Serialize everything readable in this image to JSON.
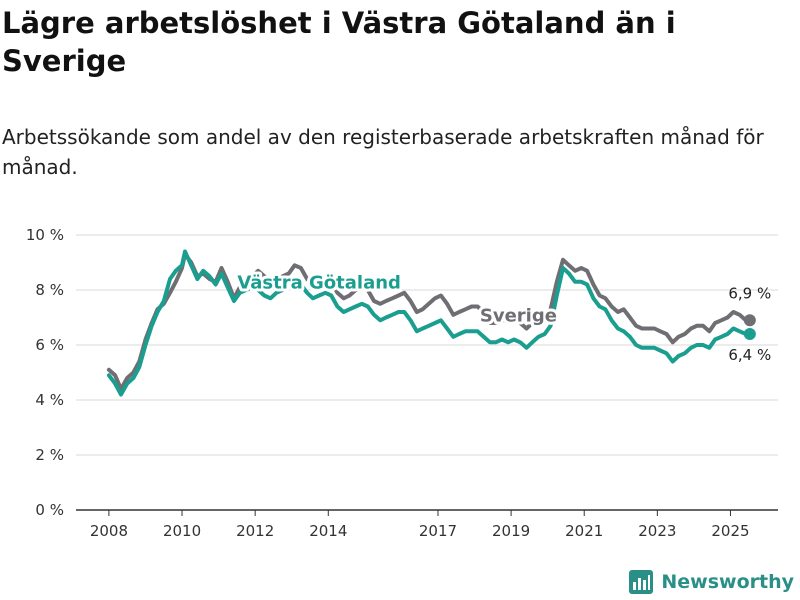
{
  "title": "Lägre arbetslöshet i Västra Götaland än i Sverige",
  "subtitle": "Arbetssökande som andel av den registerbaserade arbetskraften månad för månad.",
  "brand": {
    "name": "Newsworthy",
    "icon": "bar-chart-logo-icon",
    "color": "#2a8f86"
  },
  "chart_data": {
    "type": "line",
    "ylim": [
      0,
      10
    ],
    "xlim": [
      2007.1,
      2026.3
    ],
    "y_ticks": [
      0,
      2,
      4,
      6,
      8,
      10
    ],
    "y_tick_labels": [
      "0 %",
      "2 %",
      "4 %",
      "6 %",
      "8 %",
      "10 %"
    ],
    "x_ticks": [
      2008,
      2010,
      2012,
      2014,
      2017,
      2019,
      2021,
      2023,
      2025
    ],
    "x_tick_labels": [
      "2008",
      "2010",
      "2012",
      "2014",
      "2017",
      "2019",
      "2021",
      "2023",
      "2025"
    ],
    "grid": true,
    "legend": "direct labels on lines",
    "series": [
      {
        "name": "Sverige",
        "color": "#6e6e73",
        "end_label": "6,9 %",
        "points": [
          [
            2008.0,
            5.1
          ],
          [
            2008.17,
            4.9
          ],
          [
            2008.33,
            4.4
          ],
          [
            2008.5,
            4.8
          ],
          [
            2008.67,
            5.0
          ],
          [
            2008.83,
            5.4
          ],
          [
            2009.0,
            6.2
          ],
          [
            2009.17,
            6.8
          ],
          [
            2009.33,
            7.3
          ],
          [
            2009.5,
            7.5
          ],
          [
            2009.67,
            7.9
          ],
          [
            2009.83,
            8.3
          ],
          [
            2010.0,
            8.8
          ],
          [
            2010.08,
            9.3
          ],
          [
            2010.25,
            9.0
          ],
          [
            2010.42,
            8.5
          ],
          [
            2010.58,
            8.6
          ],
          [
            2010.75,
            8.4
          ],
          [
            2010.92,
            8.3
          ],
          [
            2011.08,
            8.8
          ],
          [
            2011.25,
            8.3
          ],
          [
            2011.42,
            7.7
          ],
          [
            2011.58,
            8.1
          ],
          [
            2011.75,
            8.2
          ],
          [
            2011.92,
            8.5
          ],
          [
            2012.08,
            8.7
          ],
          [
            2012.25,
            8.5
          ],
          [
            2012.42,
            8.3
          ],
          [
            2012.58,
            8.4
          ],
          [
            2012.75,
            8.5
          ],
          [
            2012.92,
            8.6
          ],
          [
            2013.08,
            8.9
          ],
          [
            2013.25,
            8.8
          ],
          [
            2013.42,
            8.4
          ],
          [
            2013.58,
            8.2
          ],
          [
            2013.75,
            8.3
          ],
          [
            2013.92,
            8.4
          ],
          [
            2014.08,
            8.3
          ],
          [
            2014.25,
            7.9
          ],
          [
            2014.42,
            7.7
          ],
          [
            2014.58,
            7.8
          ],
          [
            2014.75,
            8.0
          ],
          [
            2014.92,
            8.1
          ],
          [
            2015.08,
            8.0
          ],
          [
            2015.25,
            7.6
          ],
          [
            2015.42,
            7.5
          ],
          [
            2015.58,
            7.6
          ],
          [
            2015.75,
            7.7
          ],
          [
            2015.92,
            7.8
          ],
          [
            2016.08,
            7.9
          ],
          [
            2016.25,
            7.6
          ],
          [
            2016.42,
            7.2
          ],
          [
            2016.58,
            7.3
          ],
          [
            2016.75,
            7.5
          ],
          [
            2016.92,
            7.7
          ],
          [
            2017.08,
            7.8
          ],
          [
            2017.25,
            7.5
          ],
          [
            2017.42,
            7.1
          ],
          [
            2017.58,
            7.2
          ],
          [
            2017.75,
            7.3
          ],
          [
            2017.92,
            7.4
          ],
          [
            2018.08,
            7.4
          ],
          [
            2018.25,
            7.2
          ],
          [
            2018.42,
            6.8
          ],
          [
            2018.58,
            6.8
          ],
          [
            2018.75,
            6.9
          ],
          [
            2018.92,
            6.9
          ],
          [
            2019.08,
            6.9
          ],
          [
            2019.25,
            6.8
          ],
          [
            2019.42,
            6.6
          ],
          [
            2019.58,
            6.8
          ],
          [
            2019.75,
            6.9
          ],
          [
            2019.92,
            7.0
          ],
          [
            2020.08,
            7.3
          ],
          [
            2020.25,
            8.3
          ],
          [
            2020.42,
            9.1
          ],
          [
            2020.58,
            8.9
          ],
          [
            2020.75,
            8.7
          ],
          [
            2020.92,
            8.8
          ],
          [
            2021.08,
            8.7
          ],
          [
            2021.25,
            8.2
          ],
          [
            2021.42,
            7.8
          ],
          [
            2021.58,
            7.7
          ],
          [
            2021.75,
            7.4
          ],
          [
            2021.92,
            7.2
          ],
          [
            2022.08,
            7.3
          ],
          [
            2022.25,
            7.0
          ],
          [
            2022.42,
            6.7
          ],
          [
            2022.58,
            6.6
          ],
          [
            2022.75,
            6.6
          ],
          [
            2022.92,
            6.6
          ],
          [
            2023.08,
            6.5
          ],
          [
            2023.25,
            6.4
          ],
          [
            2023.42,
            6.1
          ],
          [
            2023.58,
            6.3
          ],
          [
            2023.75,
            6.4
          ],
          [
            2023.92,
            6.6
          ],
          [
            2024.08,
            6.7
          ],
          [
            2024.25,
            6.7
          ],
          [
            2024.42,
            6.5
          ],
          [
            2024.58,
            6.8
          ],
          [
            2024.75,
            6.9
          ],
          [
            2024.92,
            7.0
          ],
          [
            2025.08,
            7.2
          ],
          [
            2025.25,
            7.1
          ],
          [
            2025.42,
            6.9
          ]
        ]
      },
      {
        "name": "Västra Götaland",
        "color": "#1a9e8f",
        "end_label": "6,4 %",
        "points": [
          [
            2008.0,
            4.9
          ],
          [
            2008.17,
            4.6
          ],
          [
            2008.33,
            4.2
          ],
          [
            2008.5,
            4.6
          ],
          [
            2008.67,
            4.8
          ],
          [
            2008.83,
            5.2
          ],
          [
            2009.0,
            6.0
          ],
          [
            2009.17,
            6.7
          ],
          [
            2009.33,
            7.2
          ],
          [
            2009.5,
            7.6
          ],
          [
            2009.67,
            8.4
          ],
          [
            2009.83,
            8.7
          ],
          [
            2010.0,
            8.9
          ],
          [
            2010.08,
            9.4
          ],
          [
            2010.25,
            8.9
          ],
          [
            2010.42,
            8.4
          ],
          [
            2010.58,
            8.7
          ],
          [
            2010.75,
            8.5
          ],
          [
            2010.92,
            8.2
          ],
          [
            2011.08,
            8.6
          ],
          [
            2011.25,
            8.1
          ],
          [
            2011.42,
            7.6
          ],
          [
            2011.58,
            7.9
          ],
          [
            2011.75,
            8.0
          ],
          [
            2011.92,
            8.1
          ],
          [
            2012.08,
            8.0
          ],
          [
            2012.25,
            7.8
          ],
          [
            2012.42,
            7.7
          ],
          [
            2012.58,
            7.9
          ],
          [
            2012.75,
            8.0
          ],
          [
            2012.92,
            8.2
          ],
          [
            2013.08,
            8.3
          ],
          [
            2013.25,
            8.2
          ],
          [
            2013.42,
            7.9
          ],
          [
            2013.58,
            7.7
          ],
          [
            2013.75,
            7.8
          ],
          [
            2013.92,
            7.9
          ],
          [
            2014.08,
            7.8
          ],
          [
            2014.25,
            7.4
          ],
          [
            2014.42,
            7.2
          ],
          [
            2014.58,
            7.3
          ],
          [
            2014.75,
            7.4
          ],
          [
            2014.92,
            7.5
          ],
          [
            2015.08,
            7.4
          ],
          [
            2015.25,
            7.1
          ],
          [
            2015.42,
            6.9
          ],
          [
            2015.58,
            7.0
          ],
          [
            2015.75,
            7.1
          ],
          [
            2015.92,
            7.2
          ],
          [
            2016.08,
            7.2
          ],
          [
            2016.25,
            6.9
          ],
          [
            2016.42,
            6.5
          ],
          [
            2016.58,
            6.6
          ],
          [
            2016.75,
            6.7
          ],
          [
            2016.92,
            6.8
          ],
          [
            2017.08,
            6.9
          ],
          [
            2017.25,
            6.6
          ],
          [
            2017.42,
            6.3
          ],
          [
            2017.58,
            6.4
          ],
          [
            2017.75,
            6.5
          ],
          [
            2017.92,
            6.5
          ],
          [
            2018.08,
            6.5
          ],
          [
            2018.25,
            6.3
          ],
          [
            2018.42,
            6.1
          ],
          [
            2018.58,
            6.1
          ],
          [
            2018.75,
            6.2
          ],
          [
            2018.92,
            6.1
          ],
          [
            2019.08,
            6.2
          ],
          [
            2019.25,
            6.1
          ],
          [
            2019.42,
            5.9
          ],
          [
            2019.58,
            6.1
          ],
          [
            2019.75,
            6.3
          ],
          [
            2019.92,
            6.4
          ],
          [
            2020.08,
            6.7
          ],
          [
            2020.25,
            7.8
          ],
          [
            2020.42,
            8.8
          ],
          [
            2020.58,
            8.6
          ],
          [
            2020.75,
            8.3
          ],
          [
            2020.92,
            8.3
          ],
          [
            2021.08,
            8.2
          ],
          [
            2021.25,
            7.7
          ],
          [
            2021.42,
            7.4
          ],
          [
            2021.58,
            7.3
          ],
          [
            2021.75,
            6.9
          ],
          [
            2021.92,
            6.6
          ],
          [
            2022.08,
            6.5
          ],
          [
            2022.25,
            6.3
          ],
          [
            2022.42,
            6.0
          ],
          [
            2022.58,
            5.9
          ],
          [
            2022.75,
            5.9
          ],
          [
            2022.92,
            5.9
          ],
          [
            2023.08,
            5.8
          ],
          [
            2023.25,
            5.7
          ],
          [
            2023.42,
            5.4
          ],
          [
            2023.58,
            5.6
          ],
          [
            2023.75,
            5.7
          ],
          [
            2023.92,
            5.9
          ],
          [
            2024.08,
            6.0
          ],
          [
            2024.25,
            6.0
          ],
          [
            2024.42,
            5.9
          ],
          [
            2024.58,
            6.2
          ],
          [
            2024.75,
            6.3
          ],
          [
            2024.92,
            6.4
          ],
          [
            2025.08,
            6.6
          ],
          [
            2025.25,
            6.5
          ],
          [
            2025.42,
            6.4
          ]
        ]
      }
    ]
  }
}
